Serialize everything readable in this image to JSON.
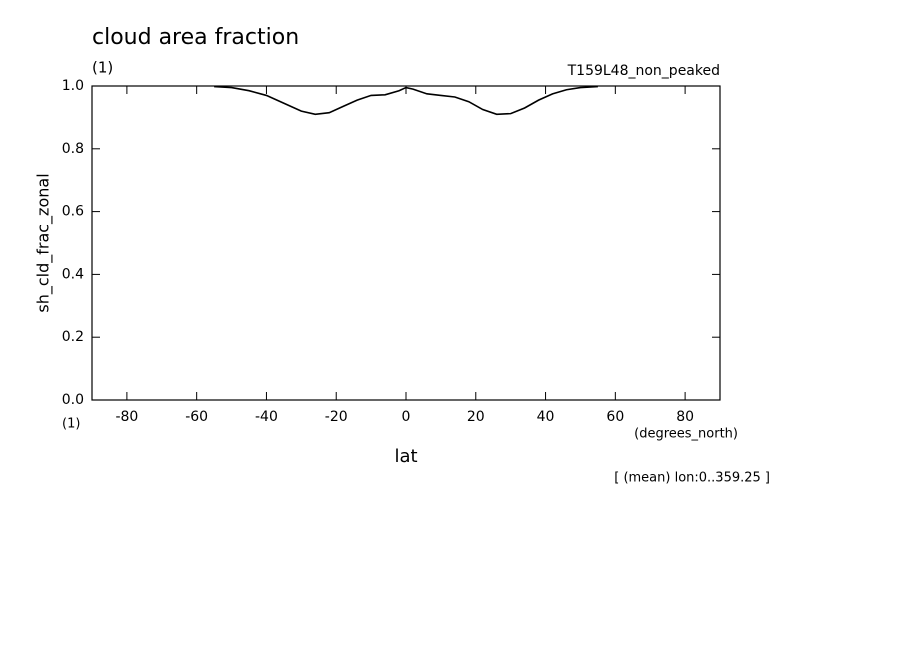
{
  "chart_data": {
    "type": "line",
    "title": "cloud area fraction",
    "subtitle": "(1)",
    "annotation": "T159L48_non_peaked",
    "ylabel": "sh_cld_frac_zonal",
    "yunits": "(1)",
    "xunits": "(degrees_north)",
    "xlabel": "lat",
    "footnote": "[ (mean) lon:0..359.25 ]",
    "xlim": [
      -90,
      90
    ],
    "ylim": [
      0,
      1
    ],
    "xticks": [
      -80,
      -60,
      -40,
      -20,
      0,
      20,
      40,
      60,
      80
    ],
    "yticks": [
      {
        "value": 0,
        "label": "0.0"
      },
      0.2,
      0.4,
      0.6,
      0.8,
      {
        "value": 1,
        "label": "1.0"
      }
    ],
    "series": [
      {
        "color": "#000000",
        "x": [
          -55,
          -50,
          -45,
          -40,
          -35,
          -30,
          -26,
          -22,
          -18,
          -14,
          -10,
          -6,
          -2,
          0,
          2,
          6,
          10,
          14,
          18,
          22,
          26,
          30,
          34,
          38,
          42,
          46,
          50,
          55
        ],
        "values": [
          0.998,
          0.995,
          0.985,
          0.97,
          0.945,
          0.92,
          0.91,
          0.915,
          0.935,
          0.955,
          0.97,
          0.972,
          0.985,
          0.995,
          0.99,
          0.975,
          0.97,
          0.965,
          0.95,
          0.925,
          0.91,
          0.912,
          0.93,
          0.955,
          0.975,
          0.988,
          0.995,
          0.998
        ]
      }
    ]
  }
}
